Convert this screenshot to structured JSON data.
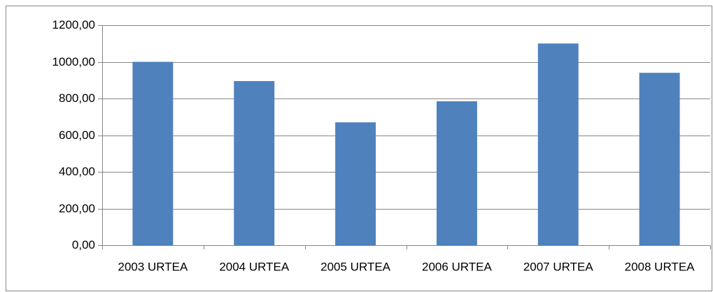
{
  "chart_data": {
    "type": "bar",
    "categories": [
      "2003 URTEA",
      "2004 URTEA",
      "2005 URTEA",
      "2006 URTEA",
      "2007 URTEA",
      "2008 URTEA"
    ],
    "values": [
      1000,
      895,
      670,
      785,
      1100,
      940
    ],
    "color": "#4f81bd",
    "ylim": [
      0,
      1200
    ],
    "yticks": [
      {
        "value": 0,
        "label": "0,00"
      },
      {
        "value": 200,
        "label": "200,00"
      },
      {
        "value": 400,
        "label": "400,00"
      },
      {
        "value": 600,
        "label": "600,00"
      },
      {
        "value": 800,
        "label": "800,00"
      },
      {
        "value": 1000,
        "label": "1000,00"
      },
      {
        "value": 1200,
        "label": "1200,00"
      }
    ],
    "grid": true
  }
}
